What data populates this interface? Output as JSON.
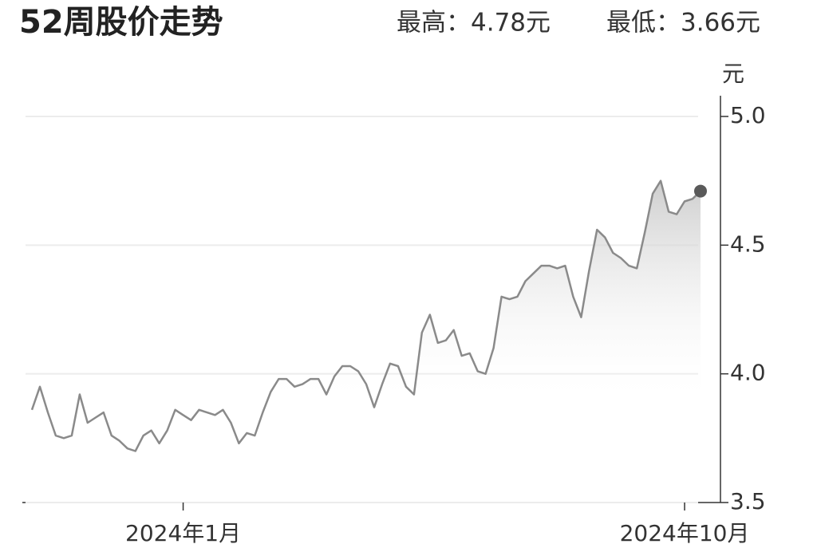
{
  "chart_data": {
    "type": "line",
    "title": "52周股价走势",
    "annotations": [
      "最高：4.78元",
      "最低：3.66元"
    ],
    "y_unit": "元",
    "categories": [
      null,
      null,
      null,
      null,
      null,
      null,
      null,
      null,
      null,
      null,
      null,
      null,
      null,
      null,
      null,
      null,
      null,
      null,
      null,
      "2024年1月",
      null,
      null,
      null,
      null,
      null,
      null,
      null,
      null,
      null,
      null,
      null,
      null,
      null,
      null,
      null,
      null,
      null,
      null,
      null,
      null,
      null,
      null,
      null,
      null,
      null,
      null,
      null,
      null,
      null,
      null,
      null,
      null,
      null,
      null,
      null,
      null,
      null,
      null,
      null,
      null,
      null,
      null,
      null,
      null,
      null,
      null,
      null,
      null,
      null,
      null,
      null,
      null,
      null,
      null,
      null,
      null,
      null,
      null,
      null,
      null,
      null,
      null,
      "2024年10月",
      null,
      null
    ],
    "values": [
      3.86,
      3.95,
      3.85,
      3.76,
      3.75,
      3.76,
      3.92,
      3.81,
      3.83,
      3.85,
      3.76,
      3.74,
      3.71,
      3.7,
      3.76,
      3.78,
      3.73,
      3.78,
      3.86,
      3.84,
      3.82,
      3.86,
      3.85,
      3.84,
      3.86,
      3.81,
      3.73,
      3.77,
      3.76,
      3.85,
      3.93,
      3.98,
      3.98,
      3.95,
      3.96,
      3.98,
      3.98,
      3.92,
      3.99,
      4.03,
      4.03,
      4.01,
      3.96,
      3.87,
      3.96,
      4.04,
      4.03,
      3.95,
      3.92,
      4.16,
      4.23,
      4.12,
      4.13,
      4.17,
      4.07,
      4.08,
      4.01,
      4.0,
      4.1,
      4.3,
      4.29,
      4.3,
      4.36,
      4.39,
      4.42,
      4.42,
      4.41,
      4.42,
      4.3,
      4.22,
      4.4,
      4.56,
      4.53,
      4.47,
      4.45,
      4.42,
      4.41,
      4.55,
      4.7,
      4.75,
      4.63,
      4.62,
      4.67,
      4.68,
      4.71
    ],
    "color": "#8a8a8a",
    "marker_color": "#5a5a5a",
    "ylim": [
      3.5,
      5.0
    ],
    "yticks": [
      3.5,
      {
        "value": 4,
        "label": "4.0"
      },
      4.5,
      {
        "value": 5,
        "label": "5.0"
      }
    ],
    "grid": true
  }
}
